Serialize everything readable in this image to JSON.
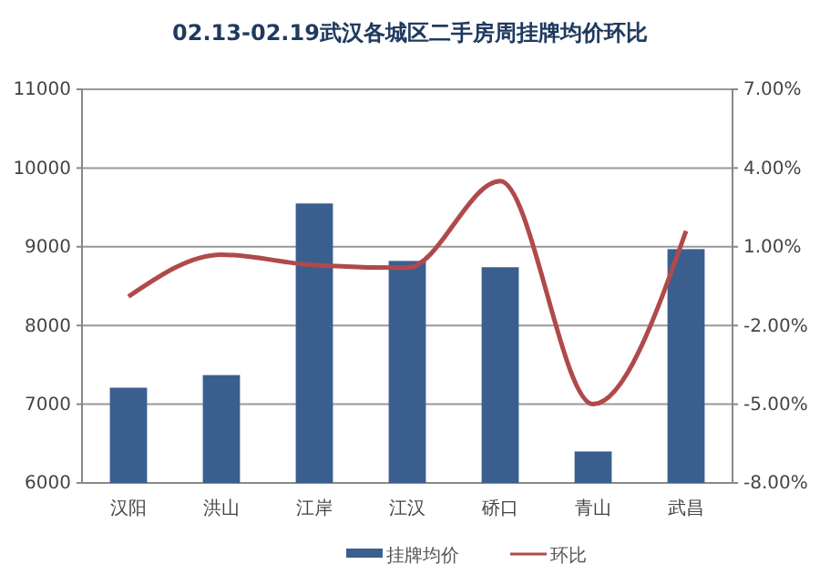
{
  "chart_data": {
    "type": "bar",
    "title": "02.13-02.19武汉各城区二手房周挂牌均价环比",
    "categories": [
      "汉阳",
      "洪山",
      "江岸",
      "江汉",
      "硚口",
      "青山",
      "武昌"
    ],
    "series": [
      {
        "name": "挂牌均价",
        "color": "#3a5f8f",
        "values": [
          7210,
          7370,
          9550,
          8820,
          8740,
          6400,
          8970
        ]
      },
      {
        "name": "环比",
        "type": "line",
        "axis": "y2",
        "color": "#b04a4a",
        "values": [
          -0.9,
          0.7,
          0.3,
          0.2,
          3.5,
          -5.0,
          1.6
        ]
      }
    ],
    "ylim": [
      6000,
      11000
    ],
    "yticks": [
      6000,
      7000,
      8000,
      9000,
      10000,
      11000
    ],
    "y2lim": [
      -8,
      7
    ],
    "y2ticks": [
      {
        "value": -8,
        "label": "-8.00%"
      },
      {
        "value": -5,
        "label": "-5.00%"
      },
      {
        "value": -2,
        "label": "-2.00%"
      },
      {
        "value": 1,
        "label": "1.00%"
      },
      {
        "value": 4,
        "label": "4.00%"
      },
      {
        "value": 7,
        "label": "7.00%"
      }
    ],
    "grid": "y",
    "legend": "bottom",
    "marker": "none",
    "line_style": "solid"
  }
}
